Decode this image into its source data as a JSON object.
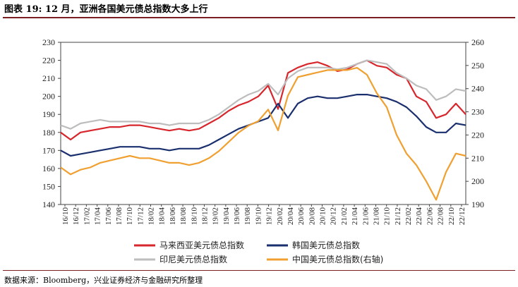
{
  "header": {
    "title": "图表 19: 12 月，亚洲各国美元债总指数大多上行"
  },
  "footer": {
    "source": "数据来源：Bloomberg，兴业证券经济与金融研究所整理"
  },
  "colors": {
    "accent_rule": "#7b1f22"
  },
  "chart_data": {
    "type": "line",
    "title": "",
    "xlabel": "",
    "ylabel": "",
    "ylim_left": [
      140,
      230
    ],
    "ylim_right": [
      190,
      260
    ],
    "yticks_left": [
      "230",
      "220",
      "210",
      "200",
      "190",
      "180",
      "170",
      "160",
      "150",
      "140"
    ],
    "yticks_right": [
      "260",
      "250",
      "240",
      "230",
      "220",
      "210",
      "200",
      "190"
    ],
    "xticks": [
      "16/10",
      "16/12",
      "17/02",
      "17/04",
      "17/06",
      "17/08",
      "17/10",
      "17/12",
      "18/02",
      "18/04",
      "18/06",
      "18/08",
      "18/10",
      "18/12",
      "19/02",
      "19/04",
      "19/06",
      "19/08",
      "19/10",
      "19/12",
      "20/02",
      "20/04",
      "20/06",
      "20/08",
      "20/10",
      "20/12",
      "21/02",
      "21/04",
      "21/06",
      "21/08",
      "21/10",
      "21/12",
      "22/02",
      "22/04",
      "22/06",
      "22/08",
      "22/10",
      "22/12"
    ],
    "grid": false,
    "legend_position": "bottom",
    "series": [
      {
        "name": "马来西亚美元债总指数",
        "axis": "left",
        "color": "#d7262c",
        "values": [
          180,
          176,
          180,
          181,
          182,
          183,
          183,
          184,
          184,
          183,
          182,
          181,
          182,
          181,
          182,
          185,
          188,
          192,
          195,
          197,
          200,
          206,
          193,
          213,
          216,
          218,
          219,
          217,
          214,
          215,
          218,
          220,
          217,
          216,
          212,
          210,
          200,
          197,
          188,
          190,
          196,
          190
        ]
      },
      {
        "name": "韩国美元债总指数",
        "axis": "left",
        "color": "#1a2f6e",
        "values": [
          170,
          167,
          168,
          169,
          170,
          171,
          172,
          172,
          172,
          171,
          171,
          170,
          171,
          171,
          171,
          173,
          176,
          179,
          182,
          184,
          186,
          188,
          196,
          188,
          196,
          199,
          200,
          199,
          199,
          200,
          201,
          201,
          200,
          199,
          197,
          194,
          189,
          183,
          180,
          180,
          185,
          184
        ]
      },
      {
        "name": "印尼美元债总指数",
        "axis": "left",
        "color": "#bdbdbd",
        "values": [
          184,
          182,
          185,
          186,
          187,
          186,
          186,
          186,
          186,
          185,
          185,
          184,
          185,
          185,
          185,
          187,
          190,
          194,
          198,
          201,
          203,
          207,
          201,
          210,
          214,
          216,
          216,
          216,
          215,
          216,
          218,
          220,
          219,
          218,
          213,
          210,
          206,
          204,
          198,
          200,
          204,
          203
        ]
      },
      {
        "name": "中国美元债总指数(右轴)",
        "axis": "right",
        "color": "#f0a030",
        "values": [
          206,
          203,
          205,
          206,
          208,
          209,
          210,
          211,
          210,
          210,
          209,
          208,
          208,
          207,
          208,
          210,
          213,
          217,
          221,
          224,
          226,
          231,
          222,
          237,
          245,
          246,
          247,
          248,
          248,
          248,
          249,
          246,
          238,
          232,
          220,
          212,
          207,
          200,
          192,
          204,
          212,
          211
        ]
      }
    ]
  }
}
